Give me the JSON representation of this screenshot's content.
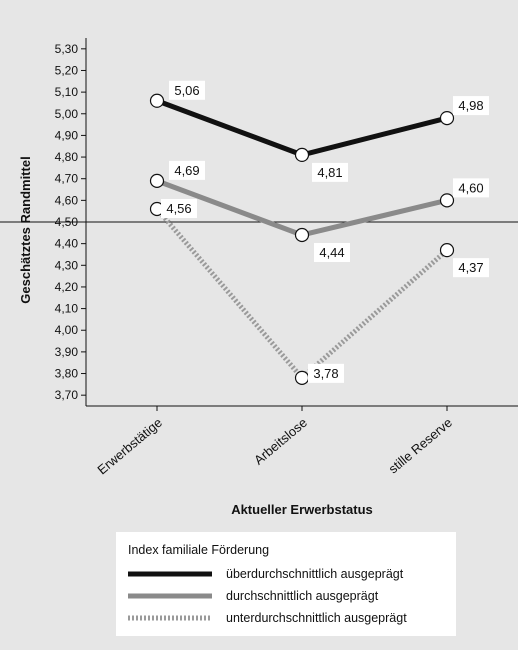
{
  "chart_data": {
    "type": "line",
    "xlabel": "Aktueller Erwerbstatus",
    "ylabel": "Geschätztes Randmittel",
    "categories": [
      "Erwerbstätige",
      "Arbeitslose",
      "stille Reserve"
    ],
    "ylim": [
      3.65,
      5.35
    ],
    "yticks": [
      "3,70",
      "3,80",
      "3,90",
      "4,00",
      "4,10",
      "4,20",
      "4,30",
      "4,40",
      "4,50",
      "4,60",
      "4,70",
      "4,80",
      "4,90",
      "5,00",
      "5,10",
      "5,20",
      "5,30"
    ],
    "reference_line": 4.5,
    "grid": false,
    "legend": {
      "title": "Index familiale Förderung",
      "position": "bottom"
    },
    "series": [
      {
        "name": "überdurchschnittlich ausgeprägt",
        "values": [
          5.06,
          4.81,
          4.98
        ],
        "labels": [
          "5,06",
          "4,81",
          "4,98"
        ],
        "color": "#111111",
        "style": "solid"
      },
      {
        "name": "durchschnittlich ausgeprägt",
        "values": [
          4.69,
          4.44,
          4.6
        ],
        "labels": [
          "4,69",
          "4,44",
          "4,60"
        ],
        "color": "#8a8a8a",
        "style": "solid"
      },
      {
        "name": "unterdurchschnittlich ausgeprägt",
        "values": [
          4.56,
          3.78,
          4.37
        ],
        "labels": [
          "4,56",
          "3,78",
          "4,37"
        ],
        "color": "#9a9a9a",
        "style": "dotted"
      }
    ]
  }
}
